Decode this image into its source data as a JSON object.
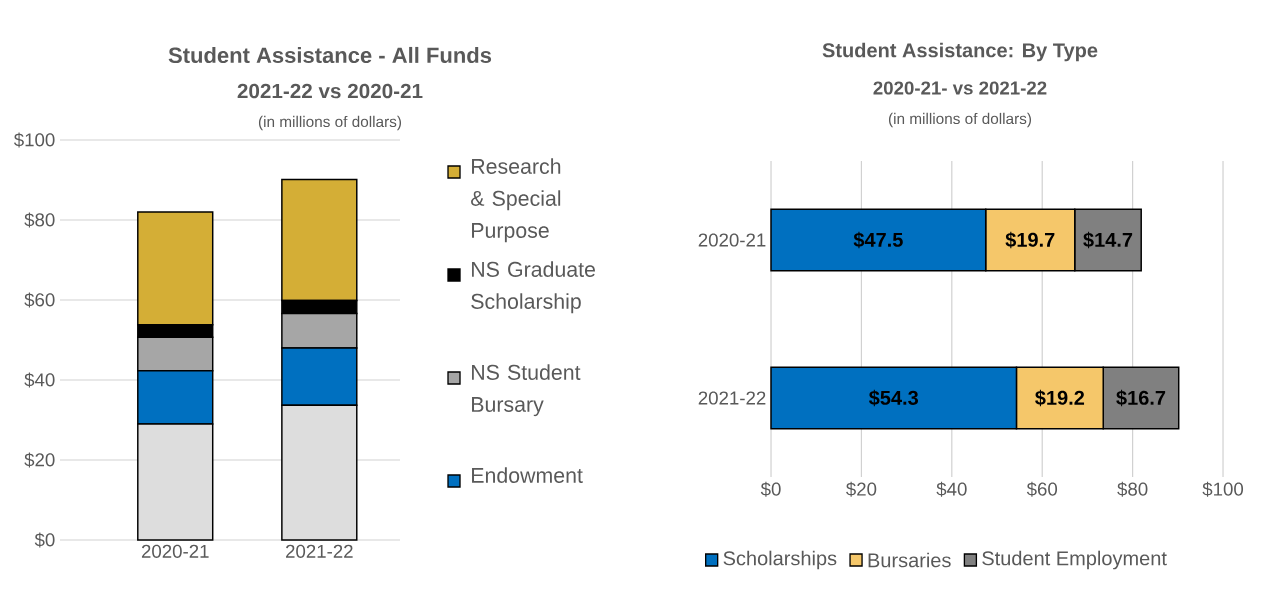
{
  "chart_data": [
    {
      "type": "bar",
      "title": "Student Assistance - All Funds",
      "subtitle": "2021-22 vs 2020-21",
      "annotations": [
        "(in millions of dollars)"
      ],
      "stacked": true,
      "categories": [
        "2020-21",
        "2021-22"
      ],
      "series": [
        {
          "color": "#dddddd",
          "values": [
            29.0,
            33.7
          ]
        },
        {
          "name": "Endowment",
          "color": "#0070c0",
          "values": [
            13.3,
            14.3
          ]
        },
        {
          "name": "NS Student Bursary",
          "color": "#a6a6a6",
          "values": [
            8.4,
            8.6
          ]
        },
        {
          "name": "NS Graduate Scholarship",
          "color": "#000000",
          "values": [
            3.1,
            3.3
          ]
        },
        {
          "name": "Research & Special Purpose",
          "color": "#d4ae36",
          "values": [
            28.2,
            30.2
          ]
        }
      ],
      "ylim": [
        0,
        100
      ],
      "yticks": [
        {
          "value": 0,
          "label": "$0"
        },
        {
          "value": 20,
          "label": "$20"
        },
        {
          "value": 40,
          "label": "$40"
        },
        {
          "value": 60,
          "label": "$60"
        },
        {
          "value": 80,
          "label": "$80"
        },
        {
          "value": 100,
          "label": "$100"
        }
      ],
      "grid": "y",
      "legend": "right"
    },
    {
      "type": "bar",
      "title": "Student Assistance: By Type",
      "subtitle": "2020-21- vs 2021-22",
      "annotations": [
        "(in millions of dollars)"
      ],
      "stacked": true,
      "orientation": "horizontal",
      "categories": [
        "2020-21",
        "2021-22"
      ],
      "series": [
        {
          "name": "Scholarships",
          "color": "#0070c0",
          "values": [
            47.5,
            54.3
          ],
          "value_labels": [
            "$47.5",
            "$54.3"
          ]
        },
        {
          "name": "Bursaries",
          "color": "#f5c76a",
          "values": [
            19.7,
            19.2
          ],
          "value_labels": [
            "$19.7",
            "$19.2"
          ]
        },
        {
          "name": "Student Employment",
          "color": "#808080",
          "values": [
            14.7,
            16.7
          ],
          "value_labels": [
            "$14.7",
            "$16.7"
          ]
        }
      ],
      "xlim": [
        0,
        100
      ],
      "xticks": [
        {
          "value": 0,
          "label": "$0"
        },
        {
          "value": 20,
          "label": "$20"
        },
        {
          "value": 40,
          "label": "$40"
        },
        {
          "value": 60,
          "label": "$60"
        },
        {
          "value": 80,
          "label": "$80"
        },
        {
          "value": 100,
          "label": "$100"
        }
      ],
      "grid": "x",
      "legend": "bottom"
    }
  ]
}
